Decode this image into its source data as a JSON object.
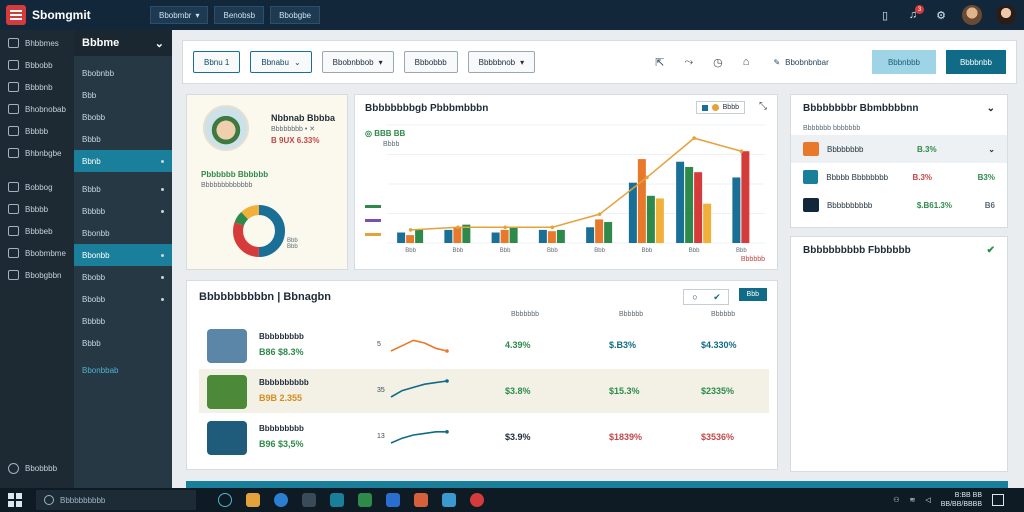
{
  "app": {
    "title": "Sbomgmit"
  },
  "top_tabs": [
    {
      "label": "Bbobmbr"
    },
    {
      "label": "Benobsb"
    },
    {
      "label": "Bbobgbe"
    }
  ],
  "top_right": {
    "notification_count": "3"
  },
  "rail": {
    "items": [
      {
        "label": "Bhbbmes",
        "icon": "grid-icon"
      },
      {
        "label": "Bbbobb",
        "icon": "layers-icon"
      },
      {
        "label": "Bbbbnb",
        "icon": "box-icon"
      },
      {
        "label": "Bhobnobab",
        "icon": "chart-icon"
      },
      {
        "label": "Bbbbb",
        "icon": "list-icon"
      },
      {
        "label": "Bhbnbgbe",
        "icon": "gear-icon"
      },
      {
        "label": "Bobbog",
        "icon": "folder-icon"
      },
      {
        "label": "Bbbbb",
        "icon": "calendar-icon"
      },
      {
        "label": "Bbbbeb",
        "icon": "users-icon"
      },
      {
        "label": "Bbobmbme",
        "icon": "mail-icon"
      },
      {
        "label": "Bbobgbbn",
        "icon": "doc-icon"
      }
    ],
    "footer": "Bbobbbb"
  },
  "subnav": {
    "title": "Bbbme",
    "items": [
      {
        "label": "Bbobnbb"
      },
      {
        "label": "Bbb"
      },
      {
        "label": "Bbobb"
      },
      {
        "label": "Bbbb"
      },
      {
        "label": "Bbnb",
        "active": true
      },
      {
        "label": "Bbbb"
      },
      {
        "label": "Bbbbb"
      },
      {
        "label": "Bbonbb"
      },
      {
        "label": "Bbonbb",
        "active": true
      },
      {
        "label": "Bbobb"
      },
      {
        "label": "Bbobb"
      },
      {
        "label": "Bbbbb"
      },
      {
        "label": "Bbbb"
      }
    ],
    "link": "Bbonbbab"
  },
  "toolbar": {
    "buttons": [
      {
        "label": "Bbnu 1"
      },
      {
        "label": "Bbnabu"
      },
      {
        "label": "Bbobnbbob"
      },
      {
        "label": "Bbbobbb"
      },
      {
        "label": "Bbbbbnob"
      }
    ],
    "edit_label": "Bbobnbnbar",
    "secondary_label": "Bbbnbbb",
    "primary_label": "Bbbbnbb"
  },
  "profile": {
    "name": "Nbbnab Bbbba",
    "sub": "Bbbbbbbb • ✕",
    "stat": "B 9UX 6.33%",
    "section_title": "Pbbbbbb Bbbbbb",
    "caption": "Bbbbbbbbbbbbb",
    "legend": "Bbb\nBbb"
  },
  "performance": {
    "title": "Bbbbbbbbgb Pbbbmbbbn",
    "chips": "Bbbb",
    "kpi": "BBB BB",
    "kpi_sub": "Bbbb",
    "legend_note": "Bbbbbb"
  },
  "chart_data": {
    "type": "bar",
    "categories": [
      "Bbb",
      "Bbb",
      "Bbb",
      "Bbb",
      "Bbb",
      "Bbb",
      "Bbb",
      "Bbb"
    ],
    "series": [
      {
        "color": "#1a6f96",
        "values": [
          8,
          10,
          8,
          10,
          12,
          46,
          62,
          50
        ]
      },
      {
        "color": "#e8792a",
        "values": [
          6,
          12,
          10,
          9,
          18,
          64,
          0,
          0
        ]
      },
      {
        "color": "#2e8a4a",
        "values": [
          10,
          14,
          12,
          10,
          16,
          36,
          58,
          0
        ]
      },
      {
        "color": "#d63b3b",
        "values": [
          0,
          0,
          0,
          0,
          0,
          0,
          54,
          70
        ]
      },
      {
        "color": "#f0b03a",
        "values": [
          0,
          0,
          0,
          0,
          0,
          34,
          30,
          0
        ]
      }
    ],
    "line": {
      "color": "#e6a23a",
      "values": [
        10,
        12,
        12,
        12,
        22,
        50,
        80,
        70
      ]
    },
    "ylim": [
      0,
      90
    ]
  },
  "right_card": {
    "title": "Bbbbbbbbr Bbmbbbbnn",
    "caption": "Bbbbbbb bbbbbbb",
    "rows": [
      {
        "label": "Bbbbbbbb",
        "value": "B.3%",
        "extra": "",
        "icon_color": "#e8792a",
        "value_class": "pos"
      },
      {
        "label": "Bbbbb Bbbbbbbb",
        "value": "B.3%",
        "extra": "B3%",
        "icon_color": "#1a7f9a",
        "value_class": "neg"
      },
      {
        "label": "Bbbbbbbbbb",
        "value": "$.B61.3%",
        "extra": "B6",
        "icon_color": "#12283a",
        "value_class": "pos"
      }
    ]
  },
  "right_card2": {
    "title": "Bbbbbbbbbb Fbbbbbb"
  },
  "relations": {
    "title": "Bbbbbbbbbbn | Bbnagbn",
    "tab": "Bbb",
    "headers": [
      "Bbbbbbb",
      "Bbbbbb",
      "Bbbbbb"
    ],
    "rows": [
      {
        "name": "Bbbbbbbbb",
        "sub": "B86 $8.3%",
        "x": "5",
        "c1": "4.39%",
        "c2": "$.B3%",
        "c3": "$4.330%",
        "c1_class": "pos",
        "c2_class": "teal",
        "c3_class": "teal",
        "thumb": "#5b86a8",
        "spark_color": "#e8792a",
        "spark": [
          6,
          4,
          2,
          3,
          5,
          6
        ]
      },
      {
        "name": "Bbbbbbbbbb",
        "sub": "B9B 2.355",
        "x": "35",
        "c1": "$3.8%",
        "c2": "$15.3%",
        "c3": "$2335%",
        "c1_class": "pos",
        "c2_class": "pos",
        "c3_class": "pos",
        "thumb": "#4c8a3a",
        "spark_color": "#0f6b86",
        "spark": [
          10,
          6,
          4,
          2,
          1,
          0
        ]
      },
      {
        "name": "Bbbbbbbbb",
        "sub": "B96 $3,5%",
        "x": "13",
        "c1": "$3.9%",
        "c2": "$1839%",
        "c3": "$3536%",
        "c1_class": "",
        "c2_class": "neg",
        "c3_class": "neg",
        "thumb": "#1f5b7a",
        "spark_color": "#0f6b86",
        "spark": [
          10,
          7,
          5,
          4,
          3,
          3
        ]
      }
    ]
  },
  "taskbar": {
    "search_placeholder": "Bbbbbbbbbb",
    "clock_time": "B:BB BB",
    "clock_date": "BB/BB/BBBB"
  }
}
